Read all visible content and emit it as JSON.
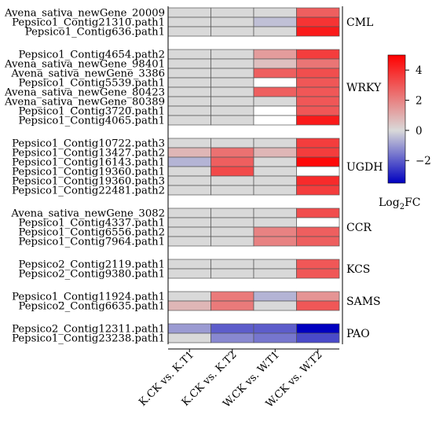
{
  "chart_data": {
    "type": "heatmap",
    "columns": [
      "K.CK vs. K.T1",
      "K.CK vs. K.T2",
      "W.CK vs. W.T1",
      "W.CK vs. W.T2"
    ],
    "groups": [
      {
        "name": "CML",
        "rows": [
          {
            "label": "Avena_sativa_newGene_20009",
            "values": [
              0,
              0,
              0,
              2.8
            ]
          },
          {
            "label": "Pepsico1_Contig21310.path1",
            "values": [
              0,
              0,
              -0.4,
              3.8
            ]
          },
          {
            "label": "Pepsico1_Contig636.path1",
            "values": [
              0,
              0,
              0,
              4.4
            ]
          }
        ]
      },
      {
        "name": "WRKY",
        "rows": [
          {
            "label": "Pepsico1_Contig4654.path2",
            "values": [
              0,
              0,
              1.4,
              3.6
            ]
          },
          {
            "label": "Avena_sativa_newGene_98401",
            "values": [
              0,
              0,
              0.6,
              2.3
            ]
          },
          {
            "label": "Avena_sativa_newGene_3386",
            "values": [
              0,
              0,
              2.8,
              3.2
            ]
          },
          {
            "label": "Pepsico1_Contig5539.path1",
            "values": [
              0,
              0,
              null,
              3.0
            ]
          },
          {
            "label": "Avena_sativa_newGene_80423",
            "values": [
              0,
              0,
              2.8,
              3.0
            ]
          },
          {
            "label": "Avena_sativa_newGene_80389",
            "values": [
              0,
              0,
              0,
              3.0
            ]
          },
          {
            "label": "Pepsico1_Contig3720.path1",
            "values": [
              0,
              0,
              null,
              3.0
            ]
          },
          {
            "label": "Pepsico1_Contig4065.path1",
            "values": [
              0,
              0,
              null,
              4.4
            ]
          }
        ]
      },
      {
        "name": "UGDH",
        "rows": [
          {
            "label": "Pepsico1_Contig10722.path3",
            "values": [
              0,
              0,
              0,
              3.6
            ]
          },
          {
            "label": "Pepsico1_Contig13427.path2",
            "values": [
              0.8,
              2.4,
              0.8,
              3.6
            ]
          },
          {
            "label": "Pepsico1_Contig16143.path1",
            "values": [
              -0.6,
              2.8,
              0,
              4.8
            ]
          },
          {
            "label": "Pepsico1_Contig19360.path1",
            "values": [
              0,
              3.3,
              0,
              null
            ]
          },
          {
            "label": "Pepsico1_Contig19360.path3",
            "values": [
              0,
              0,
              0,
              4.0
            ]
          },
          {
            "label": "Pepsico1_Contig22481.path2",
            "values": [
              0,
              0,
              0,
              3.6
            ]
          }
        ]
      },
      {
        "name": "CCR",
        "rows": [
          {
            "label": "Avena_sativa_newGene_3082",
            "values": [
              0,
              0,
              0,
              3.2
            ]
          },
          {
            "label": "Pepsico1_Contig4337.path1",
            "values": [
              0,
              0,
              0,
              null
            ]
          },
          {
            "label": "Pepsico1_Contig6556.path2",
            "values": [
              0,
              0,
              2.0,
              2.8
            ]
          },
          {
            "label": "Pepsico1_Contig7964.path1",
            "values": [
              0,
              0,
              2.0,
              2.8
            ]
          }
        ]
      },
      {
        "name": "KCS",
        "rows": [
          {
            "label": "Pepsico2_Contig2119.path1",
            "values": [
              0,
              0,
              0,
              3.0
            ]
          },
          {
            "label": "Pepsico2_Contig9380.path1",
            "values": [
              0,
              0,
              0,
              3.0
            ]
          }
        ]
      },
      {
        "name": "SAMS",
        "rows": [
          {
            "label": "Pepsico1_Contig11924.path1",
            "values": [
              0,
              2.2,
              -0.6,
              1.6
            ]
          },
          {
            "label": "Pepsico2_Contig6635.path1",
            "values": [
              0.8,
              2.2,
              0,
              3.0
            ]
          }
        ]
      },
      {
        "name": "PAO",
        "rows": [
          {
            "label": "Pepsico2_Contig12311.path1",
            "values": [
              -1.0,
              -2.0,
              -2.0,
              -3.5
            ]
          },
          {
            "label": "Pepsico1_Contig23238.path1",
            "values": [
              0,
              -1.3,
              -1.6,
              -2.3
            ]
          }
        ]
      }
    ],
    "colorbar": {
      "min": -3.5,
      "max": 5,
      "ticks": [
        4,
        2,
        0,
        -2
      ],
      "label_main": "Log",
      "label_sub": "2",
      "label_end": "FC",
      "colors": {
        "low": "#0000c0",
        "mid": "#d9d9d9",
        "high": "#ff0000"
      }
    },
    "missing_color": "#ffffff"
  }
}
